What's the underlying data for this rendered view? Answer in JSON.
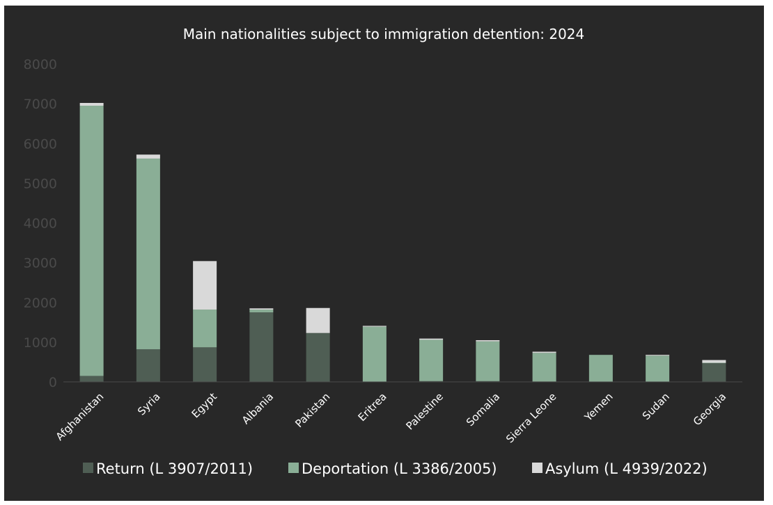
{
  "chart_data": {
    "type": "bar",
    "stacked": true,
    "title": "Main nationalities subject to immigration detention: 2024",
    "categories": [
      "Afghanistan",
      "Syria",
      "Egypt",
      "Albania",
      "Pakistan",
      "Eritrea",
      "Palestine",
      "Somalia",
      "Sierra Leone",
      "Yemen",
      "Sudan",
      "Georgia"
    ],
    "series": [
      {
        "name": "Return (L 3907/2011)",
        "color": "#4f5e54",
        "values": [
          150,
          820,
          870,
          1750,
          1230,
          0,
          20,
          20,
          10,
          0,
          0,
          470
        ]
      },
      {
        "name": "Deportation (L 3386/2005)",
        "color": "#8aae96",
        "values": [
          6800,
          4800,
          950,
          70,
          0,
          1390,
          1040,
          1000,
          720,
          680,
          660,
          10
        ]
      },
      {
        "name": "Asylum (L 4939/2022)",
        "color": "#d9d9d9",
        "values": [
          70,
          100,
          1220,
          30,
          630,
          20,
          30,
          30,
          30,
          0,
          20,
          70
        ]
      }
    ],
    "ylim": [
      0,
      8000
    ],
    "yticks": [
      0,
      1000,
      2000,
      3000,
      4000,
      5000,
      6000,
      7000,
      8000
    ],
    "grid": false,
    "legend_position": "bottom",
    "background": "#282828",
    "text_color": "#ffffff",
    "tick_color": "#4a4a4a"
  }
}
